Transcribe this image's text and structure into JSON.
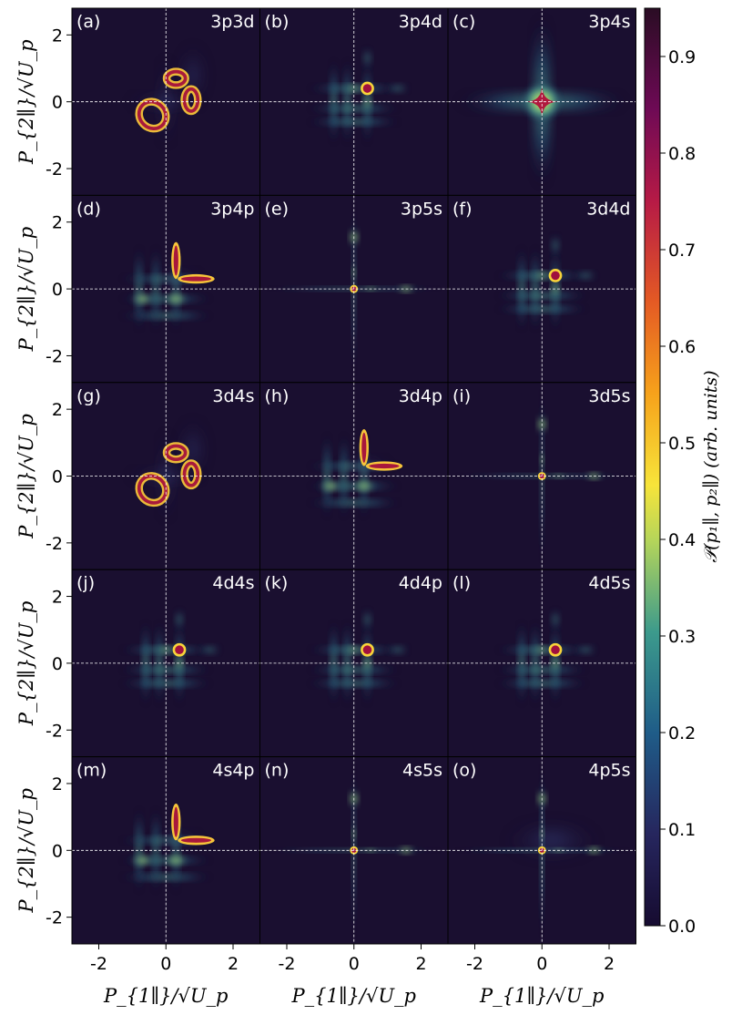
{
  "chart_data": {
    "type": "heatmap",
    "title": "",
    "xlabel": "P_{1∥}/√U_p",
    "ylabel": "P_{2∥}/√U_p",
    "xlim": [
      -2.8,
      2.8
    ],
    "ylim": [
      -2.8,
      2.8
    ],
    "x_ticks": [
      -2,
      0,
      2
    ],
    "y_ticks": [
      -2,
      0,
      2
    ],
    "x_tick_labels": [
      "-2",
      "0",
      "2"
    ],
    "y_tick_labels": [
      "-2",
      "0",
      "2"
    ],
    "colorbar": {
      "label": "𝒫(p₁∥, p₂∥) (arb. units)",
      "range": [
        0.0,
        0.95
      ],
      "ticks": [
        0.0,
        0.1,
        0.2,
        0.3,
        0.4,
        0.5,
        0.6,
        0.7,
        0.8,
        0.9
      ],
      "tick_labels": [
        "0.0",
        "0.1",
        "0.2",
        "0.3",
        "0.4",
        "0.5",
        "0.6",
        "0.7",
        "0.8",
        "0.9"
      ],
      "colormap": "inferno-viridis"
    },
    "panels": [
      {
        "tag": "(a)",
        "name": "3p3d",
        "pattern": "loops"
      },
      {
        "tag": "(b)",
        "name": "3p4d",
        "pattern": "grid"
      },
      {
        "tag": "(c)",
        "name": "3p4s",
        "pattern": "cross"
      },
      {
        "tag": "(d)",
        "name": "3p4p",
        "pattern": "lshape"
      },
      {
        "tag": "(e)",
        "name": "3p5s",
        "pattern": "sharp"
      },
      {
        "tag": "(f)",
        "name": "3d4d",
        "pattern": "grid"
      },
      {
        "tag": "(g)",
        "name": "3d4s",
        "pattern": "loops"
      },
      {
        "tag": "(h)",
        "name": "3d4p",
        "pattern": "lshape"
      },
      {
        "tag": "(i)",
        "name": "3d5s",
        "pattern": "sharp"
      },
      {
        "tag": "(j)",
        "name": "4d4s",
        "pattern": "grid"
      },
      {
        "tag": "(k)",
        "name": "4d4p",
        "pattern": "grid"
      },
      {
        "tag": "(l)",
        "name": "4d5s",
        "pattern": "grid"
      },
      {
        "tag": "(m)",
        "name": "4s4p",
        "pattern": "lshape"
      },
      {
        "tag": "(n)",
        "name": "4s5s",
        "pattern": "sharp"
      },
      {
        "tag": "(o)",
        "name": "4p5s",
        "pattern": "sharp2"
      }
    ]
  },
  "colors": {
    "background": "#1a0f30",
    "guide": "#ffffff"
  }
}
